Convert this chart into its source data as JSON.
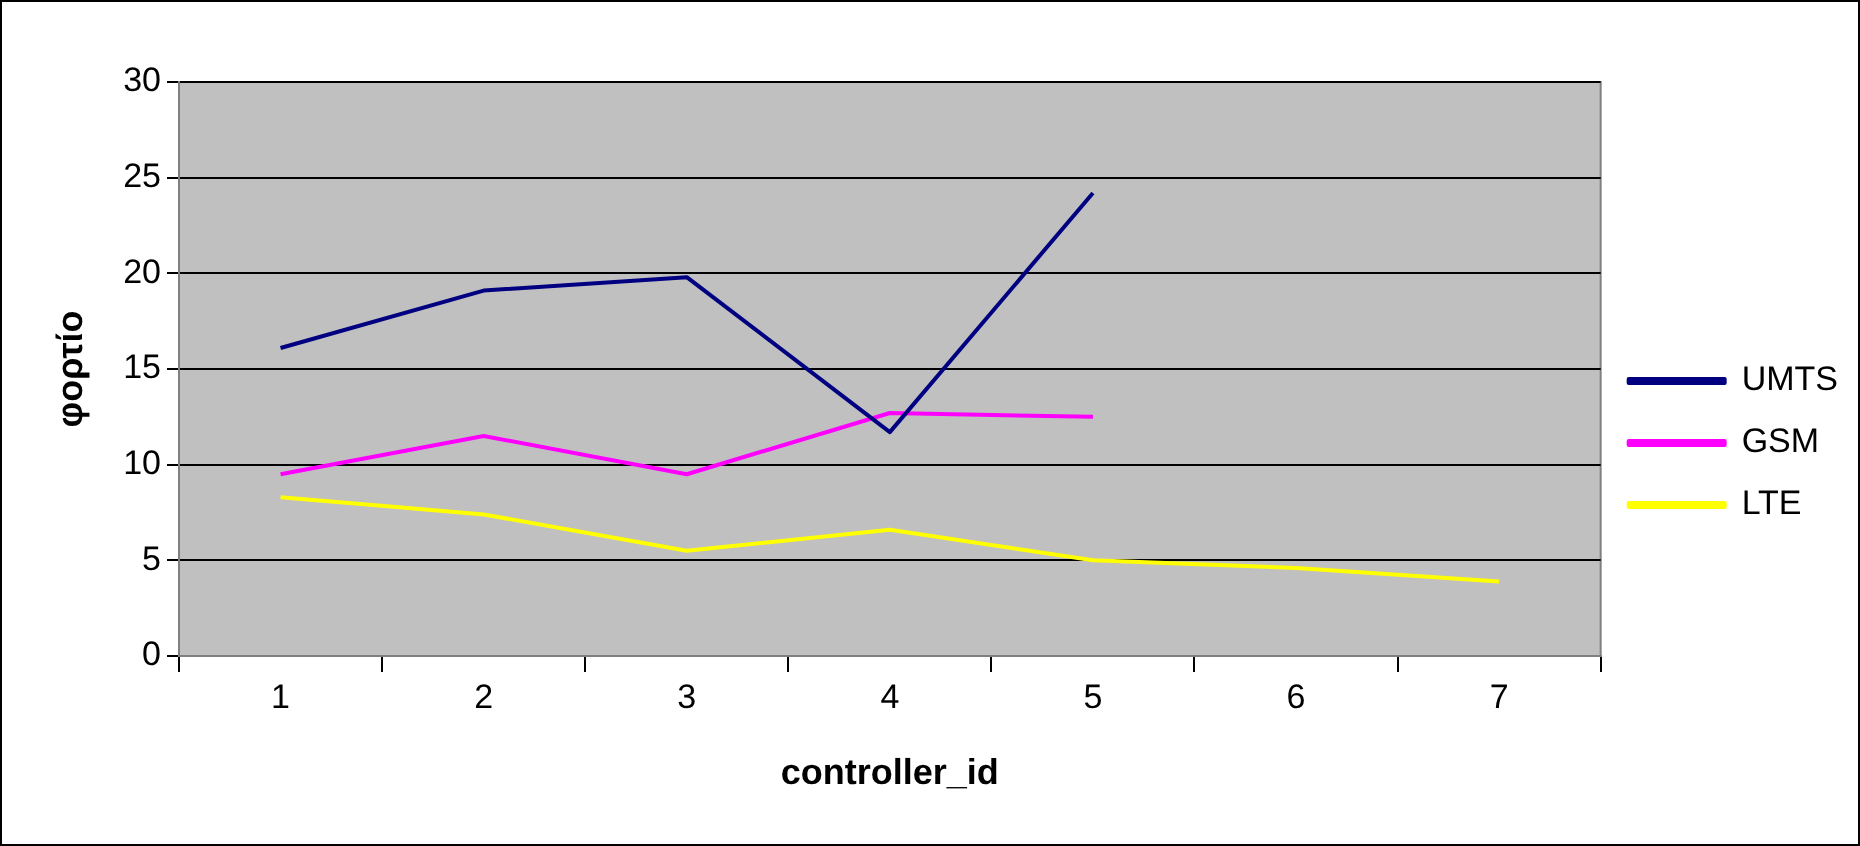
{
  "chart_data": {
    "type": "line",
    "xlabel": "controller_id",
    "ylabel": "φορτίο",
    "categories": [
      "1",
      "2",
      "3",
      "4",
      "5",
      "6",
      "7"
    ],
    "series": [
      {
        "name": "UMTS",
        "color": "#000080",
        "values": [
          16.1,
          19.1,
          19.8,
          11.7,
          24.2,
          null,
          null
        ]
      },
      {
        "name": "GSM",
        "color": "#ff00ff",
        "values": [
          9.5,
          11.5,
          9.5,
          12.7,
          12.5,
          null,
          null
        ]
      },
      {
        "name": "LTE",
        "color": "#ffff00",
        "values": [
          8.3,
          7.4,
          5.5,
          6.6,
          5.0,
          4.6,
          3.9
        ]
      }
    ],
    "ylim": [
      0,
      30
    ],
    "yticks": [
      0,
      5,
      10,
      15,
      20,
      25,
      30
    ],
    "grid": "y",
    "legend": "right",
    "marker": "none",
    "line_style": "solid"
  }
}
